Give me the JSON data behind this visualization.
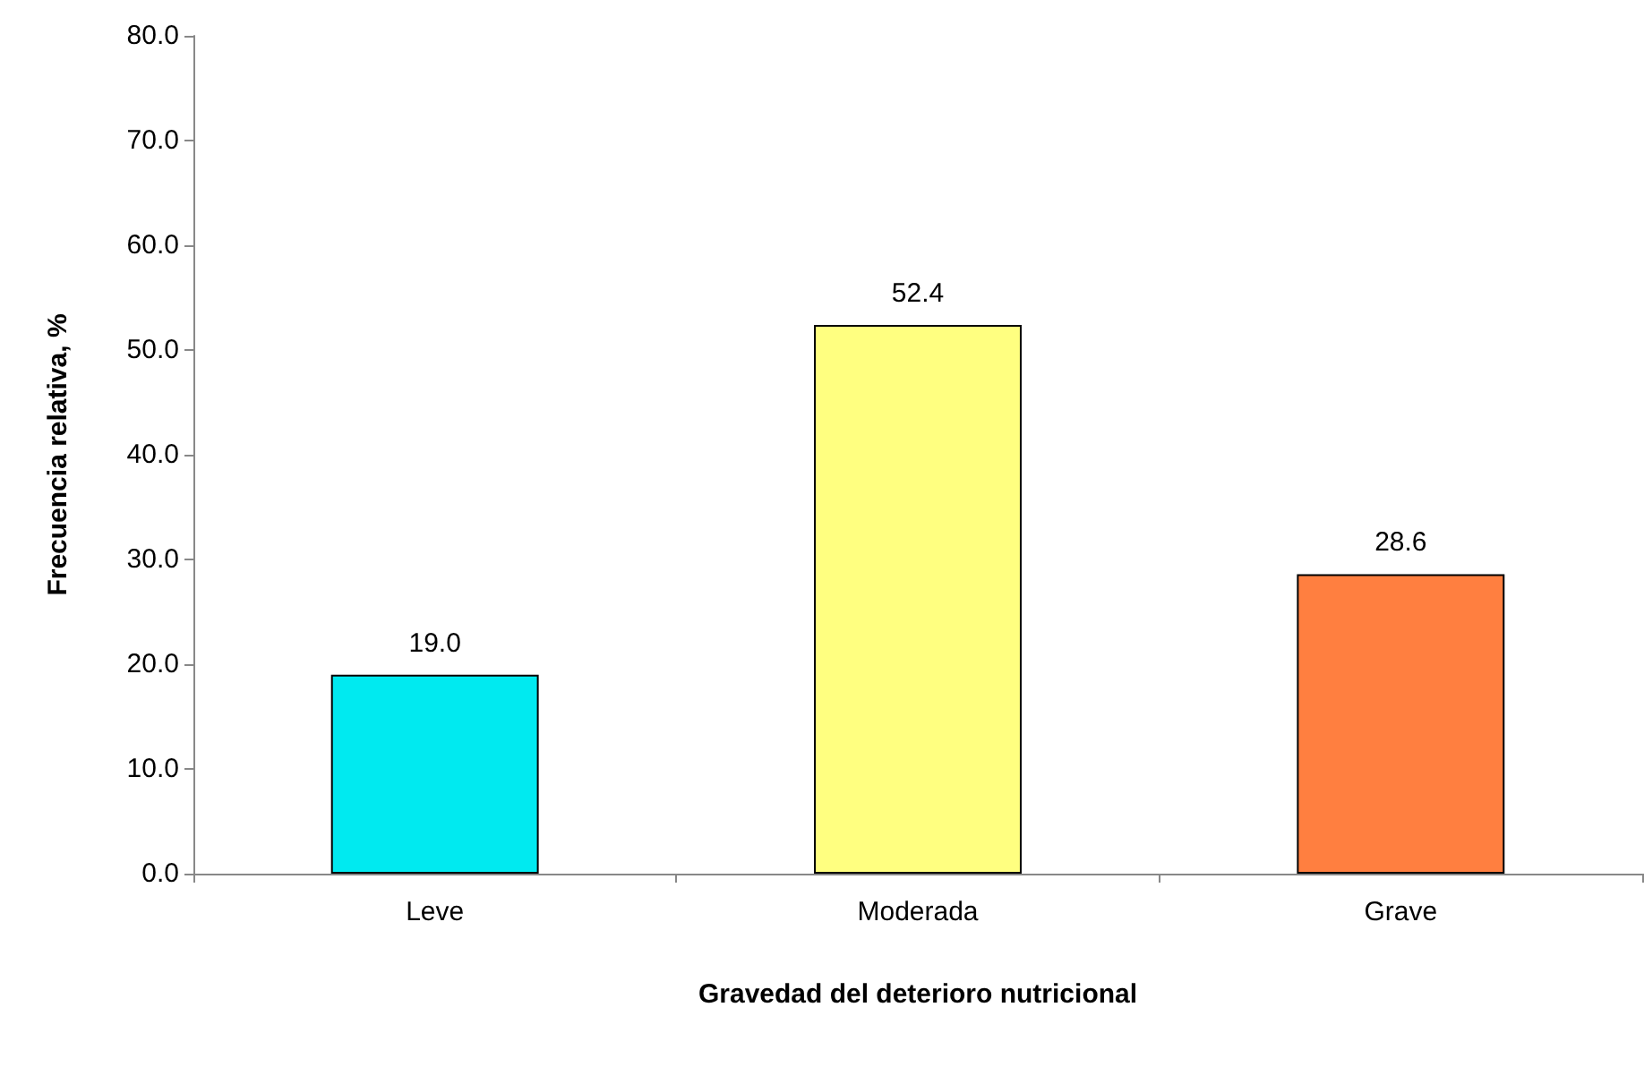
{
  "chart_data": {
    "type": "bar",
    "xlabel": "Gravedad del deterioro nutricional",
    "ylabel": "Frecuencia relativa, %",
    "categories": [
      "Leve",
      "Moderada",
      "Grave"
    ],
    "values": [
      19.0,
      52.4,
      28.6
    ],
    "colors": [
      "#00eaf0",
      "#ffff80",
      "#ff7f40"
    ],
    "value_labels": [
      "19.0",
      "52.4",
      "28.6"
    ],
    "ylim": [
      0,
      80
    ],
    "yticks": [
      {
        "value": 0,
        "label": "0.0"
      },
      {
        "value": 10,
        "label": "10.0"
      },
      {
        "value": 20,
        "label": "20.0"
      },
      {
        "value": 30,
        "label": "30.0"
      },
      {
        "value": 40,
        "label": "40.0"
      },
      {
        "value": 50,
        "label": "50.0"
      },
      {
        "value": 60,
        "label": "60.0"
      },
      {
        "value": 70,
        "label": "70.0"
      },
      {
        "value": 80,
        "label": "80.0"
      }
    ],
    "grid": false
  }
}
